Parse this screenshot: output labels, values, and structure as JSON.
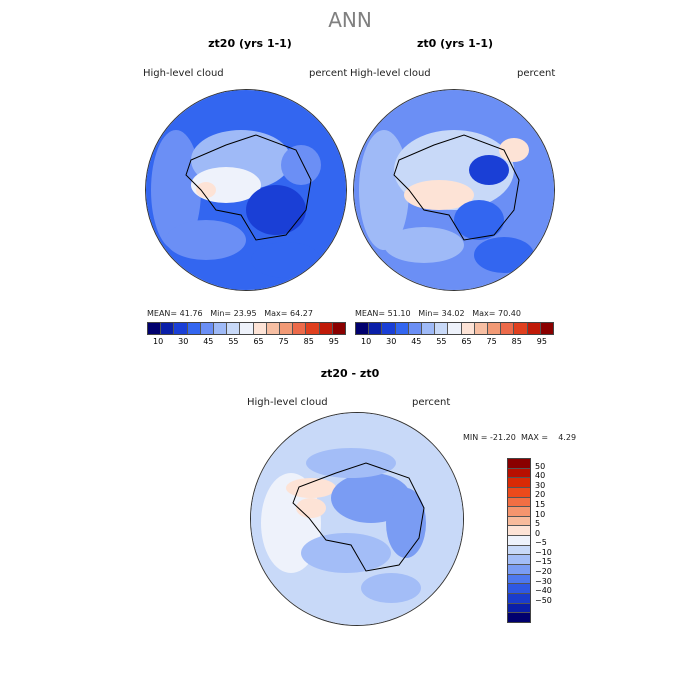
{
  "title": "ANN",
  "panels": [
    {
      "title": "zt20 (yrs 1-1)",
      "variable": "High-level cloud",
      "units": "percent",
      "stats": {
        "mean_label": "MEAN=",
        "mean": "41.76",
        "min_label": "Min=",
        "min": "23.95",
        "max_label": "Max=",
        "max": "64.27"
      }
    },
    {
      "title": "zt0 (yrs 1-1)",
      "variable": "High-level cloud",
      "units": "percent",
      "stats": {
        "mean_label": "MEAN=",
        "mean": "51.10",
        "min_label": "Min=",
        "min": "34.02",
        "max_label": "Max=",
        "max": "70.40"
      }
    },
    {
      "title": "zt20 - zt0",
      "variable": "High-level cloud",
      "units": "percent",
      "stats": {
        "min_label": "MIN =",
        "min": "-21.20",
        "max_label": "MAX =",
        "max": "4.29"
      }
    }
  ],
  "colorbar_abs": {
    "colors": [
      "#00006e",
      "#0a1fa8",
      "#1a3fd6",
      "#3366f0",
      "#6b8ff5",
      "#9fbaf7",
      "#c8d9f8",
      "#eef2fb",
      "#fde3d6",
      "#f7bfa3",
      "#f29a76",
      "#ec6a4a",
      "#e0401f",
      "#c01a08",
      "#8a0000"
    ],
    "tick_labels": [
      "10",
      "30",
      "45",
      "55",
      "65",
      "75",
      "85",
      "95"
    ]
  },
  "colorbar_diff": {
    "colors": [
      "#8a0000",
      "#b80f00",
      "#d92a05",
      "#ec4a1c",
      "#f26e43",
      "#f5956e",
      "#f8bb9c",
      "#fde3d6",
      "#eef2fb",
      "#c8d9f8",
      "#a3bdf7",
      "#7a9cf3",
      "#4e78ee",
      "#2f58e3",
      "#1a3ccc",
      "#0a1fa8",
      "#00006e"
    ],
    "tick_labels": [
      "50",
      "40",
      "30",
      "20",
      "15",
      "10",
      "5",
      "0",
      "−5",
      "−10",
      "−15",
      "−20",
      "−30",
      "−40",
      "−50"
    ]
  }
}
